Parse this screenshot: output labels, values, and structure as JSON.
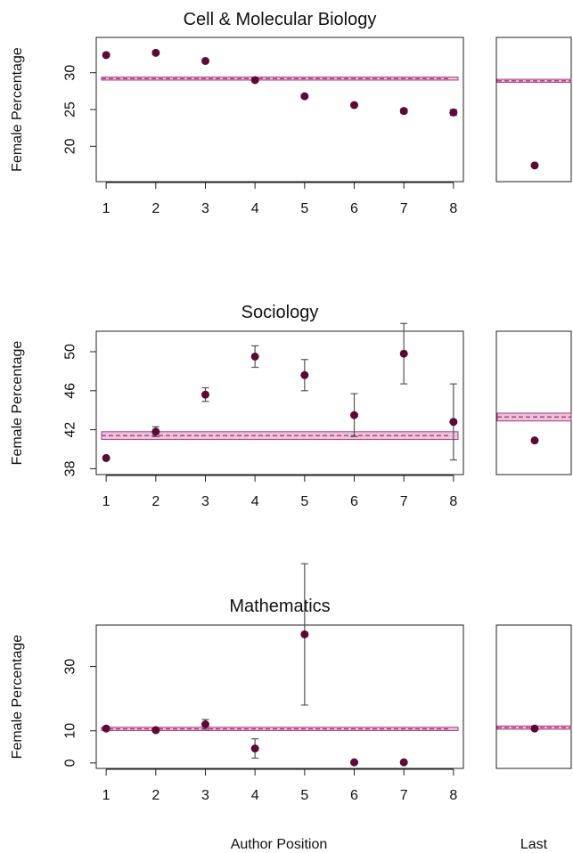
{
  "figure": {
    "x_axis_label": "Author Position",
    "last_axis_label": "Last"
  },
  "colors": {
    "point": "#5c0a35",
    "mean_line": "#b0357f",
    "mean_band": "#e8c6da",
    "error_bar": "#555555",
    "axis": "#222222"
  },
  "chart_data": [
    {
      "type": "scatter",
      "title": "Cell & Molecular Biology",
      "ylabel": "Female Percentage",
      "xlabel": "",
      "categories": [
        "1",
        "2",
        "3",
        "4",
        "5",
        "6",
        "7",
        "8"
      ],
      "values": [
        32.4,
        32.7,
        31.6,
        29.0,
        26.8,
        25.6,
        24.8,
        24.6
      ],
      "errors": [
        0.2,
        0.2,
        0.2,
        0.2,
        0.2,
        0.2,
        0.3,
        0.4
      ],
      "mean": 29.2,
      "mean_band": [
        29.0,
        29.4
      ],
      "yticks": [
        20,
        25,
        30
      ],
      "ylim": [
        15.2,
        34.8
      ],
      "xlim": [
        0.8,
        8.2
      ],
      "last": {
        "label": "Last",
        "value": 17.4,
        "error": 0,
        "mean": 28.9,
        "mean_band": [
          28.7,
          29.1
        ]
      }
    },
    {
      "type": "scatter",
      "title": "Sociology",
      "ylabel": "Female Percentage",
      "xlabel": "",
      "categories": [
        "1",
        "2",
        "3",
        "4",
        "5",
        "6",
        "7",
        "8"
      ],
      "values": [
        39.1,
        41.8,
        45.6,
        49.5,
        47.6,
        43.5,
        49.8,
        42.8
      ],
      "errors": [
        0,
        0.5,
        0.7,
        1.1,
        1.6,
        2.2,
        3.1,
        3.9
      ],
      "mean": 41.4,
      "mean_band": [
        41.0,
        41.8
      ],
      "yticks": [
        38,
        42,
        46,
        50
      ],
      "ylim": [
        37.4,
        52.1
      ],
      "xlim": [
        0.8,
        8.2
      ],
      "last": {
        "label": "Last",
        "value": 40.9,
        "error": 0,
        "mean": 43.3,
        "mean_band": [
          42.9,
          43.7
        ]
      }
    },
    {
      "type": "scatter",
      "title": "Mathematics",
      "ylabel": "Female Percentage",
      "xlabel": "Author Position",
      "categories": [
        "1",
        "2",
        "3",
        "4",
        "5",
        "6",
        "7"
      ],
      "values": [
        10.7,
        10.2,
        12.0,
        4.5,
        40.0,
        0.2,
        0.2
      ],
      "errors": [
        0.5,
        0.5,
        1.5,
        3.0,
        22.0,
        0,
        0
      ],
      "mean": 10.6,
      "mean_band": [
        10.1,
        11.1
      ],
      "xticks": [
        "1",
        "2",
        "3",
        "4",
        "5",
        "6",
        "7",
        "8"
      ],
      "yticks": [
        0,
        10,
        30
      ],
      "ylim": [
        -1.7,
        42.9
      ],
      "xlim": [
        0.8,
        8.2
      ],
      "last": {
        "label": "Last",
        "value": 10.7,
        "error": 0,
        "mean": 11.0,
        "mean_band": [
          10.5,
          11.5
        ]
      }
    }
  ]
}
